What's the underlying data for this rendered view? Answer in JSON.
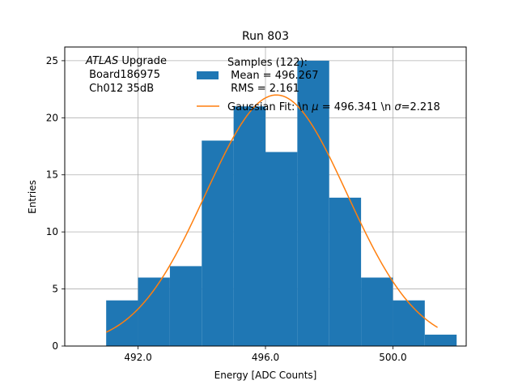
{
  "chart_data": {
    "type": "bar",
    "title": "Run 803",
    "xlabel": "Energy [ADC Counts]",
    "ylabel": "Entries",
    "xlim": [
      489.7,
      502.3
    ],
    "ylim": [
      0,
      26.2
    ],
    "grid": true,
    "legend_position": "top-right",
    "bin_edges": [
      491,
      492,
      493,
      494,
      495,
      496,
      497,
      498,
      499,
      500,
      501,
      502
    ],
    "values": [
      4,
      6,
      7,
      18,
      21,
      17,
      25,
      13,
      6,
      4,
      1
    ],
    "bar_color": "#1f77b4",
    "fit_color": "#ff7f0e",
    "x_ticks": [
      {
        "value": 492,
        "label": "492.0"
      },
      {
        "value": 496,
        "label": "496.0"
      },
      {
        "value": 500,
        "label": "500.0"
      }
    ],
    "y_ticks": [
      {
        "value": 0,
        "label": "0"
      },
      {
        "value": 5,
        "label": "5"
      },
      {
        "value": 10,
        "label": "10"
      },
      {
        "value": 15,
        "label": "15"
      },
      {
        "value": 20,
        "label": "20"
      },
      {
        "value": 25,
        "label": "25"
      }
    ],
    "fit": {
      "type": "gaussian",
      "mu": 496.341,
      "sigma": 2.218,
      "amplitude": 22.0,
      "x_range": [
        491.0,
        501.4
      ]
    },
    "annotation": {
      "italic": "ATLAS",
      "rest": " Upgrade",
      "lines": [
        " Board186975",
        " Ch012 35dB"
      ]
    },
    "legend": {
      "samples_label": "Samples (122):\n Mean = 496.267\n RMS = 2.161",
      "fit_label_parts": [
        "Gaussian Fit: \\n ",
        "μ",
        " = 496.341 \\n ",
        "σ",
        "=2.218"
      ]
    }
  }
}
